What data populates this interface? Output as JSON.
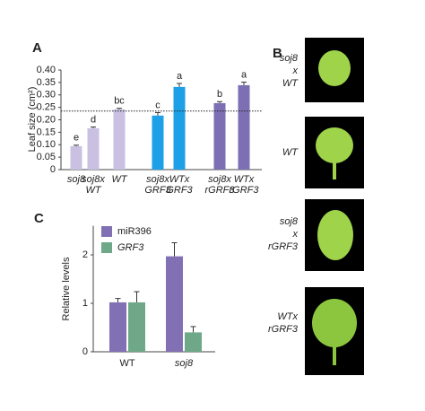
{
  "panels": {
    "a": "A",
    "b": "B",
    "c": "C"
  },
  "photos": [
    "soj8 x WT",
    "WT",
    "soj8 x rGRF3",
    "WTx rGRF3"
  ],
  "chart_data": [
    {
      "type": "bar",
      "y_label": "Leaf size (cm²)",
      "categories": [
        "soj8",
        "soj8x WT",
        "WT",
        "soj8x GRF3",
        "WTx GRF3",
        "soj8x rGRF3",
        "WTx rGRF3"
      ],
      "values": [
        0.094,
        0.166,
        0.242,
        0.217,
        0.332,
        0.267,
        0.339
      ],
      "errors": [
        0.004,
        0.005,
        0.004,
        0.012,
        0.014,
        0.006,
        0.012
      ],
      "annotations": [
        "e",
        "d",
        "bc",
        "c",
        "a",
        "b",
        "a"
      ],
      "colors": [
        "#c9c0e2",
        "#c9c0e2",
        "#c9c0e2",
        "#1ea0e6",
        "#1ea0e6",
        "#7d6fb3",
        "#7d6fb3"
      ],
      "reference_line": 0.235,
      "ylim": [
        0,
        0.4
      ],
      "yticks": [
        0,
        0.05,
        {
          "value": 0.1,
          "label": "0.10"
        },
        0.15,
        {
          "value": 0.2,
          "label": "0.20"
        },
        0.25,
        {
          "value": 0.3,
          "label": "0.30"
        },
        0.35,
        {
          "value": 0.4,
          "label": "0.40"
        }
      ]
    },
    {
      "type": "grouped_bar",
      "y_label": "Relative levels",
      "categories": [
        "WT",
        "soj8"
      ],
      "series": [
        {
          "name": "miR396",
          "color": "#8270b5",
          "values": [
            1.02,
            1.97
          ],
          "errors": [
            0.08,
            0.28
          ]
        },
        {
          "name": "GRF3",
          "color": "#6fa888",
          "values": [
            1.02,
            0.4
          ],
          "errors": [
            0.22,
            0.12
          ]
        }
      ],
      "ylim": [
        0,
        2.6
      ],
      "yticks": [
        0,
        1,
        2
      ],
      "legend": "top-left"
    }
  ]
}
